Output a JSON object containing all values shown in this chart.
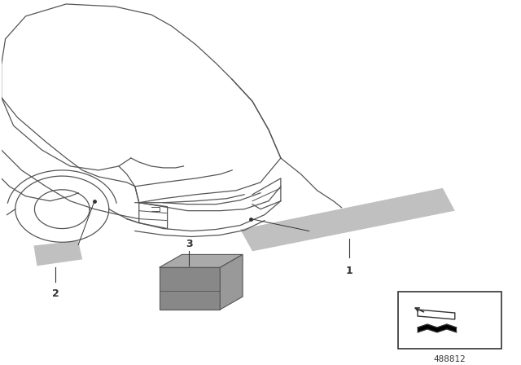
{
  "bg_color": "#ffffff",
  "line_color": "#333333",
  "car_line_color": "#555555",
  "gray_fill": "#b0b0b0",
  "light_gray": "#c0c0c0",
  "dark_gray": "#888888",
  "part_number": "488812",
  "lw_car": 0.9,
  "lw_part": 0.8
}
